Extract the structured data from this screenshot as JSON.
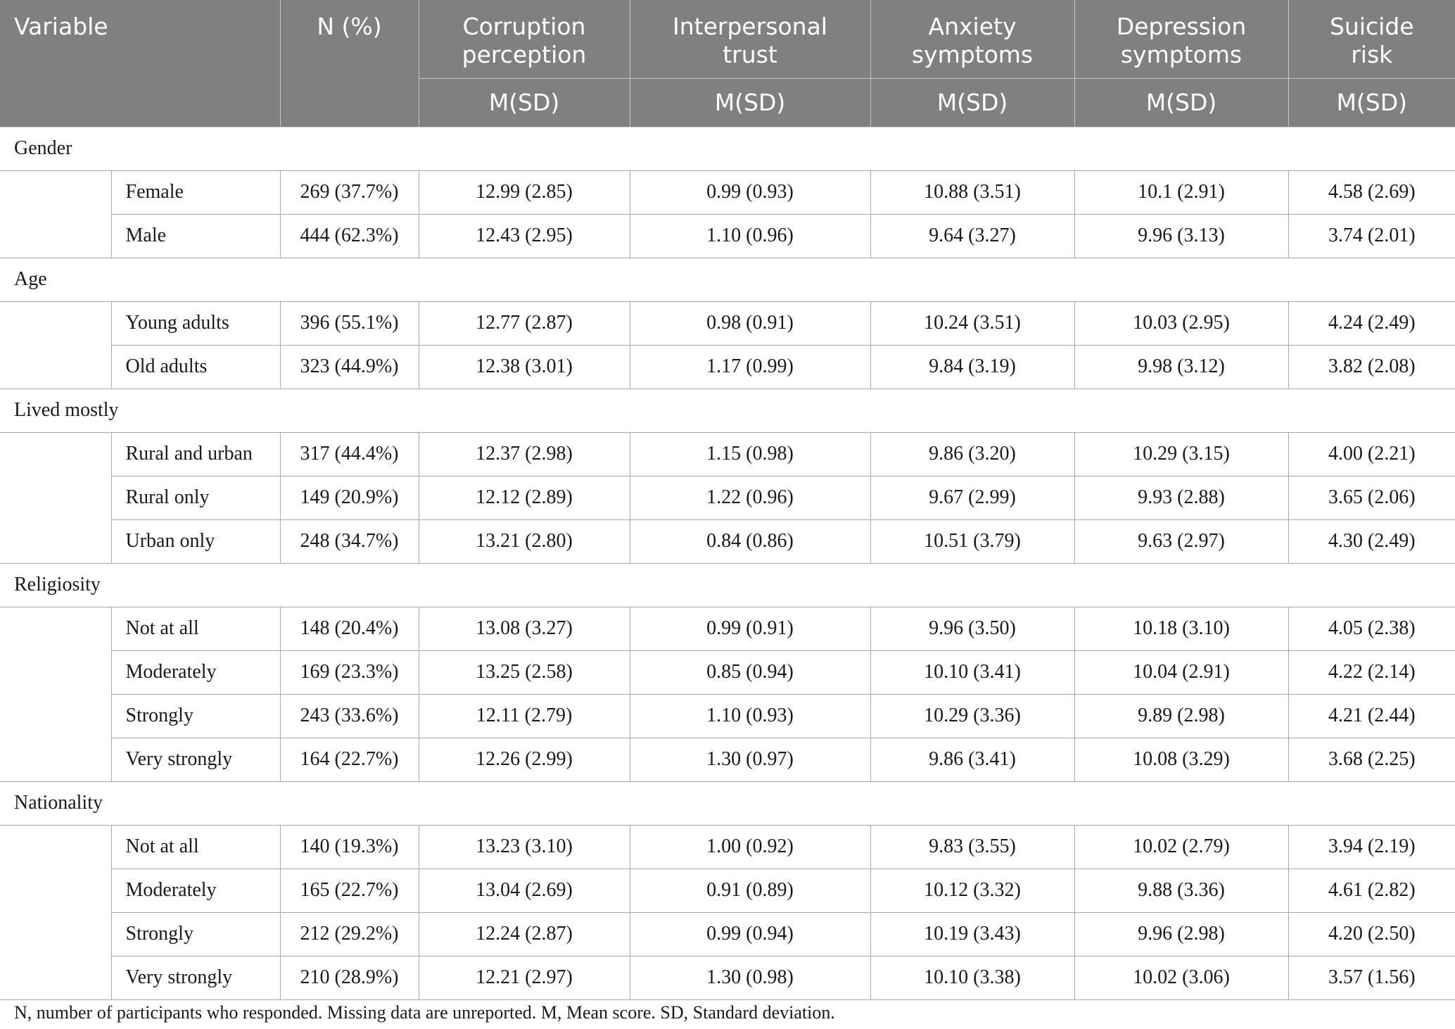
{
  "headers": {
    "variable": "Variable",
    "n_pct": "N (%)",
    "columns": [
      {
        "line1": "Corruption",
        "line2": "perception"
      },
      {
        "line1": "Interpersonal",
        "line2": "trust"
      },
      {
        "line1": "Anxiety",
        "line2": "symptoms"
      },
      {
        "line1": "Depression",
        "line2": "symptoms"
      },
      {
        "line1": "Suicide",
        "line2": "risk"
      }
    ],
    "sub": "M(SD)"
  },
  "groups": [
    {
      "name": "Gender",
      "rows": [
        {
          "label": "Female",
          "n": "269 (37.7%)",
          "values": [
            "12.99 (2.85)",
            "0.99 (0.93)",
            "10.88 (3.51)",
            "10.1 (2.91)",
            "4.58 (2.69)"
          ]
        },
        {
          "label": "Male",
          "n": "444 (62.3%)",
          "values": [
            "12.43 (2.95)",
            "1.10 (0.96)",
            "9.64 (3.27)",
            "9.96 (3.13)",
            "3.74 (2.01)"
          ]
        }
      ]
    },
    {
      "name": "Age",
      "rows": [
        {
          "label": "Young adults",
          "n": "396 (55.1%)",
          "values": [
            "12.77 (2.87)",
            "0.98 (0.91)",
            "10.24 (3.51)",
            "10.03 (2.95)",
            "4.24 (2.49)"
          ]
        },
        {
          "label": "Old adults",
          "n": "323 (44.9%)",
          "values": [
            "12.38 (3.01)",
            "1.17 (0.99)",
            "9.84 (3.19)",
            "9.98 (3.12)",
            "3.82 (2.08)"
          ]
        }
      ]
    },
    {
      "name": "Lived mostly",
      "rows": [
        {
          "label": "Rural and urban",
          "n": "317 (44.4%)",
          "values": [
            "12.37 (2.98)",
            "1.15 (0.98)",
            "9.86 (3.20)",
            "10.29 (3.15)",
            "4.00 (2.21)"
          ]
        },
        {
          "label": "Rural only",
          "n": "149 (20.9%)",
          "values": [
            "12.12 (2.89)",
            "1.22 (0.96)",
            "9.67 (2.99)",
            "9.93 (2.88)",
            "3.65 (2.06)"
          ]
        },
        {
          "label": "Urban only",
          "n": "248 (34.7%)",
          "values": [
            "13.21 (2.80)",
            "0.84 (0.86)",
            "10.51 (3.79)",
            "9.63 (2.97)",
            "4.30 (2.49)"
          ]
        }
      ]
    },
    {
      "name": "Religiosity",
      "rows": [
        {
          "label": "Not at all",
          "n": "148 (20.4%)",
          "values": [
            "13.08 (3.27)",
            "0.99 (0.91)",
            "9.96 (3.50)",
            "10.18 (3.10)",
            "4.05 (2.38)"
          ]
        },
        {
          "label": "Moderately",
          "n": "169 (23.3%)",
          "values": [
            "13.25 (2.58)",
            "0.85 (0.94)",
            "10.10 (3.41)",
            "10.04 (2.91)",
            "4.22 (2.14)"
          ]
        },
        {
          "label": "Strongly",
          "n": "243 (33.6%)",
          "values": [
            "12.11 (2.79)",
            "1.10 (0.93)",
            "10.29 (3.36)",
            "9.89 (2.98)",
            "4.21 (2.44)"
          ]
        },
        {
          "label": "Very strongly",
          "n": "164 (22.7%)",
          "values": [
            "12.26 (2.99)",
            "1.30 (0.97)",
            "9.86 (3.41)",
            "10.08 (3.29)",
            "3.68 (2.25)"
          ]
        }
      ]
    },
    {
      "name": "Nationality",
      "rows": [
        {
          "label": "Not at all",
          "n": "140 (19.3%)",
          "values": [
            "13.23 (3.10)",
            "1.00 (0.92)",
            "9.83 (3.55)",
            "10.02 (2.79)",
            "3.94 (2.19)"
          ]
        },
        {
          "label": "Moderately",
          "n": "165 (22.7%)",
          "values": [
            "13.04 (2.69)",
            "0.91 (0.89)",
            "10.12 (3.32)",
            "9.88 (3.36)",
            "4.61 (2.82)"
          ]
        },
        {
          "label": "Strongly",
          "n": "212 (29.2%)",
          "values": [
            "12.24 (2.87)",
            "0.99 (0.94)",
            "10.19 (3.43)",
            "9.96 (2.98)",
            "4.20 (2.50)"
          ]
        },
        {
          "label": "Very strongly",
          "n": "210 (28.9%)",
          "values": [
            "12.21 (2.97)",
            "1.30 (0.98)",
            "10.10 (3.38)",
            "10.02 (3.06)",
            "3.57 (1.56)"
          ]
        }
      ]
    }
  ],
  "footnote": "N, number of participants who responded. Missing data are unreported. M, Mean score. SD, Standard deviation."
}
